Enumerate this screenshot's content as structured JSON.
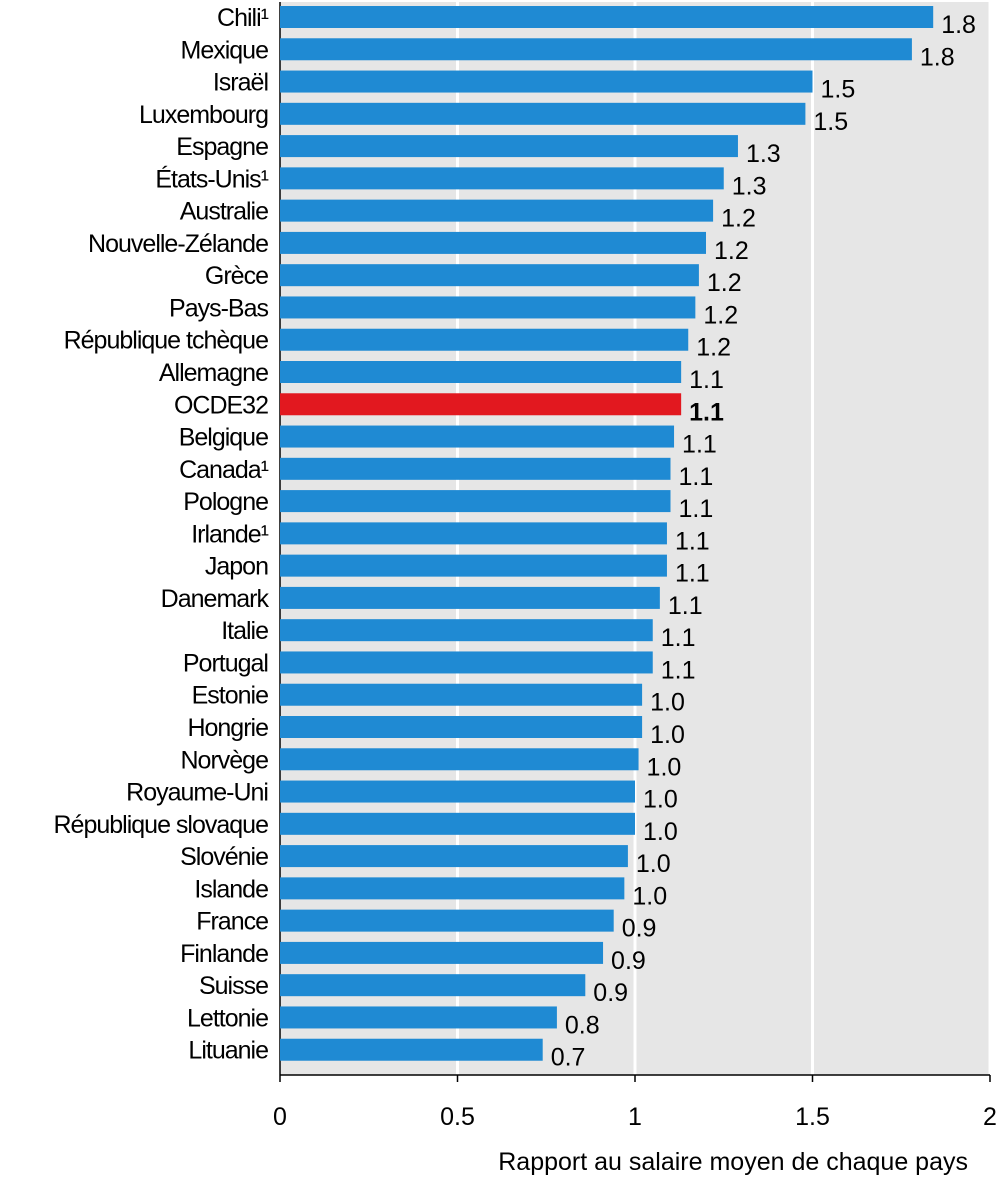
{
  "chart_data": {
    "type": "bar",
    "orientation": "horizontal",
    "title": "",
    "xlabel": "Rapport au salaire moyen de chaque pays",
    "ylabel": "",
    "xlim": [
      0,
      2
    ],
    "xticks": [
      "0",
      "0.5",
      "1",
      "1.5",
      "2"
    ],
    "grid": true,
    "colors": {
      "default": "#1f8ad3",
      "highlight": "#e2181f",
      "background": "#e6e6e6"
    },
    "highlight": "OCDE32",
    "categories": [
      "Chili¹",
      "Mexique",
      "Israël",
      "Luxembourg",
      "Espagne",
      "États-Unis¹",
      "Australie",
      "Nouvelle-Zélande",
      "Grèce",
      "Pays-Bas",
      "République tchèque",
      "Allemagne",
      "OCDE32",
      "Belgique",
      "Canada¹",
      "Pologne",
      "Irlande¹",
      "Japon",
      "Danemark",
      "Italie",
      "Portugal",
      "Estonie",
      "Hongrie",
      "Norvège",
      "Royaume-Uni",
      "République slovaque",
      "Slovénie",
      "Islande",
      "France",
      "Finlande",
      "Suisse",
      "Lettonie",
      "Lituanie"
    ],
    "values": [
      1.84,
      1.78,
      1.5,
      1.48,
      1.29,
      1.25,
      1.22,
      1.2,
      1.18,
      1.17,
      1.15,
      1.13,
      1.13,
      1.11,
      1.1,
      1.1,
      1.09,
      1.09,
      1.07,
      1.05,
      1.05,
      1.02,
      1.02,
      1.01,
      1.0,
      1.0,
      0.98,
      0.97,
      0.94,
      0.91,
      0.86,
      0.78,
      0.74
    ],
    "labels": [
      "1.8",
      "1.8",
      "1.5",
      "1.5",
      "1.3",
      "1.3",
      "1.2",
      "1.2",
      "1.2",
      "1.2",
      "1.2",
      "1.1",
      "1.1",
      "1.1",
      "1.1",
      "1.1",
      "1.1",
      "1.1",
      "1.1",
      "1.1",
      "1.1",
      "1.0",
      "1.0",
      "1.0",
      "1.0",
      "1.0",
      "1.0",
      "1.0",
      "0.9",
      "0.9",
      "0.9",
      "0.8",
      "0.7"
    ]
  }
}
